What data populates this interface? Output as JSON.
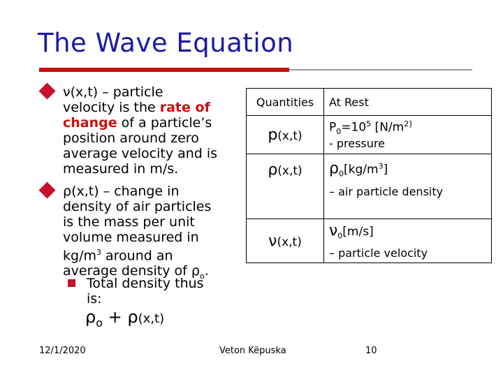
{
  "slide": {
    "title": "The Wave Equation",
    "bullets": [
      {
        "sym": "ν",
        "lines": [
          "(x,t) – particle",
          "velocity is the ",
          "rate of",
          "change",
          " of a particle’s",
          "position around zero",
          "average velocity and is",
          "measured in m/s."
        ]
      },
      {
        "sym": "ρ",
        "lines": [
          "(x,t) – change in",
          "density of air particles",
          "is the mass per unit",
          "volume measured in",
          "kg/m",
          "3",
          " around an",
          "average density of ",
          "ρ",
          "o",
          "."
        ]
      }
    ],
    "sub_bullet": [
      "Total density thus",
      "is:"
    ],
    "formula": {
      "rho": "ρ",
      "sub": "o",
      "plus": " + ",
      "rho2": "ρ",
      "arg": "(x,t)"
    }
  },
  "table": {
    "headers": [
      "Quantities",
      "At Rest"
    ],
    "rows": [
      {
        "sym": "p",
        "arg": "(x,t)",
        "rest": [
          "P",
          "0",
          "=10",
          "5",
          " [N/m",
          "2]"
        ],
        "desc": "- pressure"
      },
      {
        "sym": "ρ",
        "arg": "(x,t)",
        "rest": [
          "ρ",
          "0",
          "[kg/m",
          "3",
          "]"
        ],
        "desc": "– air particle density"
      },
      {
        "sym": "ν",
        "arg": "(x,t)",
        "rest": [
          "ν",
          "0",
          "[m/s]"
        ],
        "desc": "– particle velocity"
      }
    ]
  },
  "footer": {
    "date": "12/1/2020",
    "author": "Veton Këpuska",
    "page": "10"
  }
}
